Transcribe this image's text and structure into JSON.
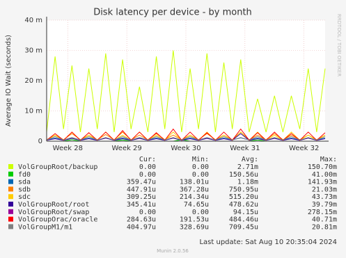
{
  "chart_data": {
    "type": "line",
    "title": "Disk latency per device - by month",
    "y_label": "Average IO Wait (seconds)",
    "side_label": "RRDTOOL / TOBI OETIKER",
    "x": [
      0,
      1,
      2,
      3,
      4,
      5,
      6,
      7,
      8,
      9,
      10,
      11,
      12,
      13,
      14,
      15,
      16,
      17,
      18,
      19,
      20,
      21,
      22,
      23,
      24,
      25,
      26,
      27,
      28,
      29,
      30,
      31,
      32,
      33
    ],
    "xlim": [
      0,
      33
    ],
    "xticks": [
      {
        "value": 2.5,
        "label": "Week 28"
      },
      {
        "value": 9.5,
        "label": "Week 29"
      },
      {
        "value": 16.5,
        "label": "Week 30"
      },
      {
        "value": 23.5,
        "label": "Week 31"
      },
      {
        "value": 30.5,
        "label": "Week 32"
      }
    ],
    "ylim": [
      0,
      0.04
    ],
    "yticks": [
      {
        "value": 0,
        "label": "0"
      },
      {
        "value": 0.01,
        "label": "10 m"
      },
      {
        "value": 0.02,
        "label": "20 m"
      },
      {
        "value": 0.03,
        "label": "30 m"
      },
      {
        "value": 0.04,
        "label": "40 m"
      }
    ],
    "grid": true,
    "table_headers": [
      "Cur:",
      "Min:",
      "Avg:",
      "Max:"
    ],
    "series": [
      {
        "name": "VolGroupRoot/backup",
        "color": "#ccff00",
        "stats": [
          "0.00",
          "0.00",
          "2.71m",
          "150.70m"
        ],
        "values": [
          0.003,
          0.028,
          0.004,
          0.025,
          0.003,
          0.024,
          0.004,
          0.029,
          0.003,
          0.027,
          0.004,
          0.018,
          0.003,
          0.028,
          0.004,
          0.03,
          0.003,
          0.024,
          0.004,
          0.029,
          0.003,
          0.026,
          0.004,
          0.027,
          0.003,
          0.014,
          0.003,
          0.015,
          0.003,
          0.015,
          0.004,
          0.024,
          0.003,
          0.024
        ]
      },
      {
        "name": "fd0",
        "color": "#00cc00",
        "stats": [
          "0.00",
          "0.00",
          "150.56u",
          "41.00m"
        ],
        "values": [
          0,
          0,
          0,
          0.0005,
          0,
          0,
          0,
          0,
          0,
          0.0004,
          0,
          0,
          0,
          0,
          0,
          0,
          0.0005,
          0,
          0,
          0,
          0,
          0,
          0,
          0,
          0,
          0.0004,
          0,
          0,
          0,
          0,
          0,
          0,
          0,
          0
        ]
      },
      {
        "name": "sda",
        "color": "#0066b3",
        "stats": [
          "359.47u",
          "138.01u",
          "1.18m",
          "141.93m"
        ],
        "values": [
          0.0004,
          0.001,
          0.0004,
          0.0012,
          0.0004,
          0.001,
          0.0004,
          0.0011,
          0.0004,
          0.001,
          0.0004,
          0.0012,
          0.0004,
          0.001,
          0.0004,
          0.0011,
          0.0004,
          0.001,
          0.0004,
          0.0012,
          0.0004,
          0.001,
          0.0004,
          0.0011,
          0.0004,
          0.001,
          0.0004,
          0.0012,
          0.0004,
          0.001,
          0.0004,
          0.0011,
          0.0004,
          0.001
        ]
      },
      {
        "name": "sdb",
        "color": "#ff8000",
        "stats": [
          "447.91u",
          "367.28u",
          "750.95u",
          "21.03m"
        ],
        "values": [
          0.0005,
          0.002,
          0.0005,
          0.0025,
          0.0005,
          0.002,
          0.0005,
          0.0022,
          0.0005,
          0.003,
          0.0005,
          0.002,
          0.0005,
          0.0025,
          0.0005,
          0.002,
          0.0005,
          0.002,
          0.0005,
          0.0025,
          0.0005,
          0.002,
          0.0005,
          0.003,
          0.0005,
          0.002,
          0.0005,
          0.0025,
          0.0005,
          0.002,
          0.0005,
          0.002,
          0.0005,
          0.002
        ]
      },
      {
        "name": "sdc",
        "color": "#ffcc00",
        "stats": [
          "309.25u",
          "214.34u",
          "515.20u",
          "43.73m"
        ],
        "values": [
          0.0003,
          0.002,
          0.0003,
          0.003,
          0.0003,
          0.002,
          0.0003,
          0.003,
          0.0003,
          0.002,
          0.0003,
          0.003,
          0.0003,
          0.002,
          0.0003,
          0.003,
          0.0003,
          0.002,
          0.0003,
          0.003,
          0.0003,
          0.002,
          0.0003,
          0.003,
          0.0003,
          0.003,
          0.0003,
          0.002,
          0.0003,
          0.003,
          0.0003,
          0.002,
          0.0003,
          0.002
        ]
      },
      {
        "name": "VolGroupRoot/root",
        "color": "#330099",
        "stats": [
          "345.41u",
          "74.65u",
          "478.62u",
          "39.79m"
        ],
        "values": [
          0.0003,
          0.0008,
          0.0003,
          0.0009,
          0.0003,
          0.0008,
          0.0003,
          0.001,
          0.0003,
          0.0008,
          0.0003,
          0.0009,
          0.0003,
          0.0008,
          0.0003,
          0.001,
          0.0003,
          0.0008,
          0.0003,
          0.0009,
          0.0003,
          0.0008,
          0.0003,
          0.0025,
          0.0003,
          0.0008,
          0.0003,
          0.0009,
          0.0003,
          0.0008,
          0.0003,
          0.001,
          0.0003,
          0.0008
        ]
      },
      {
        "name": "VolGroupRoot/swap",
        "color": "#990099",
        "stats": [
          "0.00",
          "0.00",
          "94.15u",
          "278.15m"
        ],
        "values": [
          0,
          0,
          0,
          0,
          0,
          0,
          0,
          0,
          0,
          0,
          0,
          0,
          0,
          0,
          0,
          0,
          0,
          0,
          0,
          0,
          0,
          0,
          0,
          0,
          0,
          0,
          0,
          0,
          0,
          0,
          0,
          0,
          0,
          0
        ]
      },
      {
        "name": "VolGroupOrac/oracle",
        "color": "#ff0000",
        "stats": [
          "284.63u",
          "191.53u",
          "484.46u",
          "40.71m"
        ],
        "values": [
          0.0003,
          0.0025,
          0.0003,
          0.003,
          0.0003,
          0.0028,
          0.0003,
          0.003,
          0.0003,
          0.0035,
          0.0003,
          0.003,
          0.0003,
          0.0028,
          0.0003,
          0.004,
          0.0003,
          0.003,
          0.0003,
          0.0028,
          0.0003,
          0.003,
          0.0003,
          0.004,
          0.0003,
          0.0028,
          0.0003,
          0.003,
          0.0003,
          0.0025,
          0.0003,
          0.003,
          0.0003,
          0.0028
        ]
      },
      {
        "name": "VolGroupM1/m1",
        "color": "#808080",
        "stats": [
          "404.97u",
          "328.69u",
          "709.45u",
          "20.81m"
        ],
        "values": [
          0.0004,
          0.0015,
          0.0004,
          0.0012,
          0.0004,
          0.0015,
          0.0004,
          0.0012,
          0.0004,
          0.0015,
          0.0004,
          0.0012,
          0.0004,
          0.0015,
          0.0004,
          0.0012,
          0.0004,
          0.0015,
          0.0004,
          0.0012,
          0.0004,
          0.0015,
          0.0004,
          0.0012,
          0.0004,
          0.0015,
          0.0004,
          0.0012,
          0.0004,
          0.0015,
          0.0004,
          0.0012,
          0.0004,
          0.0015
        ]
      }
    ],
    "last_update": "Last update: Sat Aug 10 20:35:04 2024",
    "footer": "Munin 2.0.56"
  }
}
